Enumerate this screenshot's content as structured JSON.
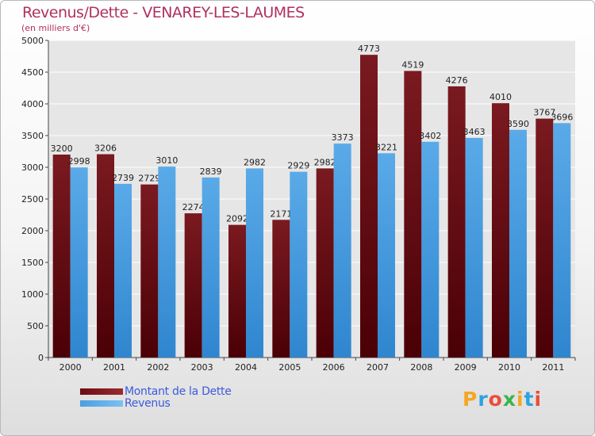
{
  "header": {
    "title": "Revenus/Dette - VENAREY-LES-LAUMES",
    "subtitle": "(en milliers d'€)"
  },
  "colors": {
    "dette": "#7a1a20",
    "dette_dark": "#4a0006",
    "revenus": "#5aaae8",
    "revenus_dark": "#2f86cf",
    "title": "#b03060",
    "legend_text": "#3b5bdb"
  },
  "legend": {
    "items": [
      {
        "label": "Montant de la Dette",
        "color": "#6a0d12"
      },
      {
        "label": "Revenus",
        "color": "#4a9ee0"
      }
    ]
  },
  "logo": {
    "letters": [
      {
        "char": "P",
        "color": "#f5a623"
      },
      {
        "char": "r",
        "color": "#2ca3e0"
      },
      {
        "char": "o",
        "color": "#e94e3d"
      },
      {
        "char": "x",
        "color": "#3cb44b"
      },
      {
        "char": "i",
        "color": "#f5a623"
      },
      {
        "char": "t",
        "color": "#2ca3e0"
      },
      {
        "char": "i",
        "color": "#e94e3d"
      }
    ]
  },
  "chart_data": {
    "type": "bar",
    "categories": [
      "2000",
      "2001",
      "2002",
      "2003",
      "2004",
      "2005",
      "2006",
      "2007",
      "2008",
      "2009",
      "2010",
      "2011"
    ],
    "series": [
      {
        "name": "Montant de la Dette",
        "values": [
          3200,
          3206,
          2729,
          2274,
          2092,
          2171,
          2982,
          4773,
          4519,
          4276,
          4010,
          3767
        ]
      },
      {
        "name": "Revenus",
        "values": [
          2998,
          2739,
          3010,
          2839,
          2982,
          2929,
          3373,
          3221,
          3402,
          3463,
          3590,
          3696
        ]
      }
    ],
    "value_labels": [
      [
        "3200",
        "3206",
        "2729",
        "2274",
        "2092",
        "2171",
        "2982",
        "4773",
        "4519",
        "4276",
        "4010",
        "3767"
      ],
      [
        "2998",
        "2739",
        "3010",
        "2839",
        "2982",
        "2929",
        "3373",
        "3221",
        "3402",
        "3463",
        "3590",
        "3696"
      ]
    ],
    "yticks": [
      "0",
      "500",
      "1000",
      "1500",
      "2000",
      "2500",
      "3000",
      "3500",
      "4000",
      "4500",
      "5000"
    ],
    "ylim": [
      0,
      5000
    ],
    "grid": true,
    "legend_position": "bottom-left"
  }
}
